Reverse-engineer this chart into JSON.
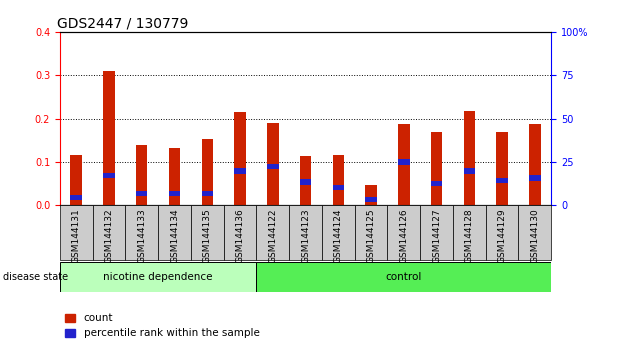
{
  "title": "GDS2447 / 130779",
  "categories": [
    "GSM144131",
    "GSM144132",
    "GSM144133",
    "GSM144134",
    "GSM144135",
    "GSM144136",
    "GSM144122",
    "GSM144123",
    "GSM144124",
    "GSM144125",
    "GSM144126",
    "GSM144127",
    "GSM144128",
    "GSM144129",
    "GSM144130"
  ],
  "count_values": [
    0.115,
    0.31,
    0.14,
    0.133,
    0.152,
    0.215,
    0.19,
    0.113,
    0.115,
    0.048,
    0.188,
    0.17,
    0.218,
    0.17,
    0.188
  ],
  "percentile_values_scaled": [
    0.018,
    0.068,
    0.027,
    0.027,
    0.027,
    0.079,
    0.09,
    0.054,
    0.042,
    0.013,
    0.1,
    0.05,
    0.079,
    0.058,
    0.063
  ],
  "bar_color": "#cc2200",
  "percentile_color": "#2222cc",
  "ylim_left": [
    0,
    0.4
  ],
  "ylim_right": [
    0,
    100
  ],
  "yticks_left": [
    0,
    0.1,
    0.2,
    0.3,
    0.4
  ],
  "yticks_right": [
    0,
    25,
    50,
    75,
    100
  ],
  "group1_label": "nicotine dependence",
  "group2_label": "control",
  "group1_count": 6,
  "group2_count": 9,
  "group1_color": "#bbffbb",
  "group2_color": "#55ee55",
  "group_row_label": "disease state",
  "tick_bg_color": "#cccccc",
  "legend_count_label": "count",
  "legend_percentile_label": "percentile rank within the sample",
  "bar_width": 0.35,
  "title_fontsize": 10,
  "tick_fontsize": 6.5,
  "background_color": "#ffffff"
}
